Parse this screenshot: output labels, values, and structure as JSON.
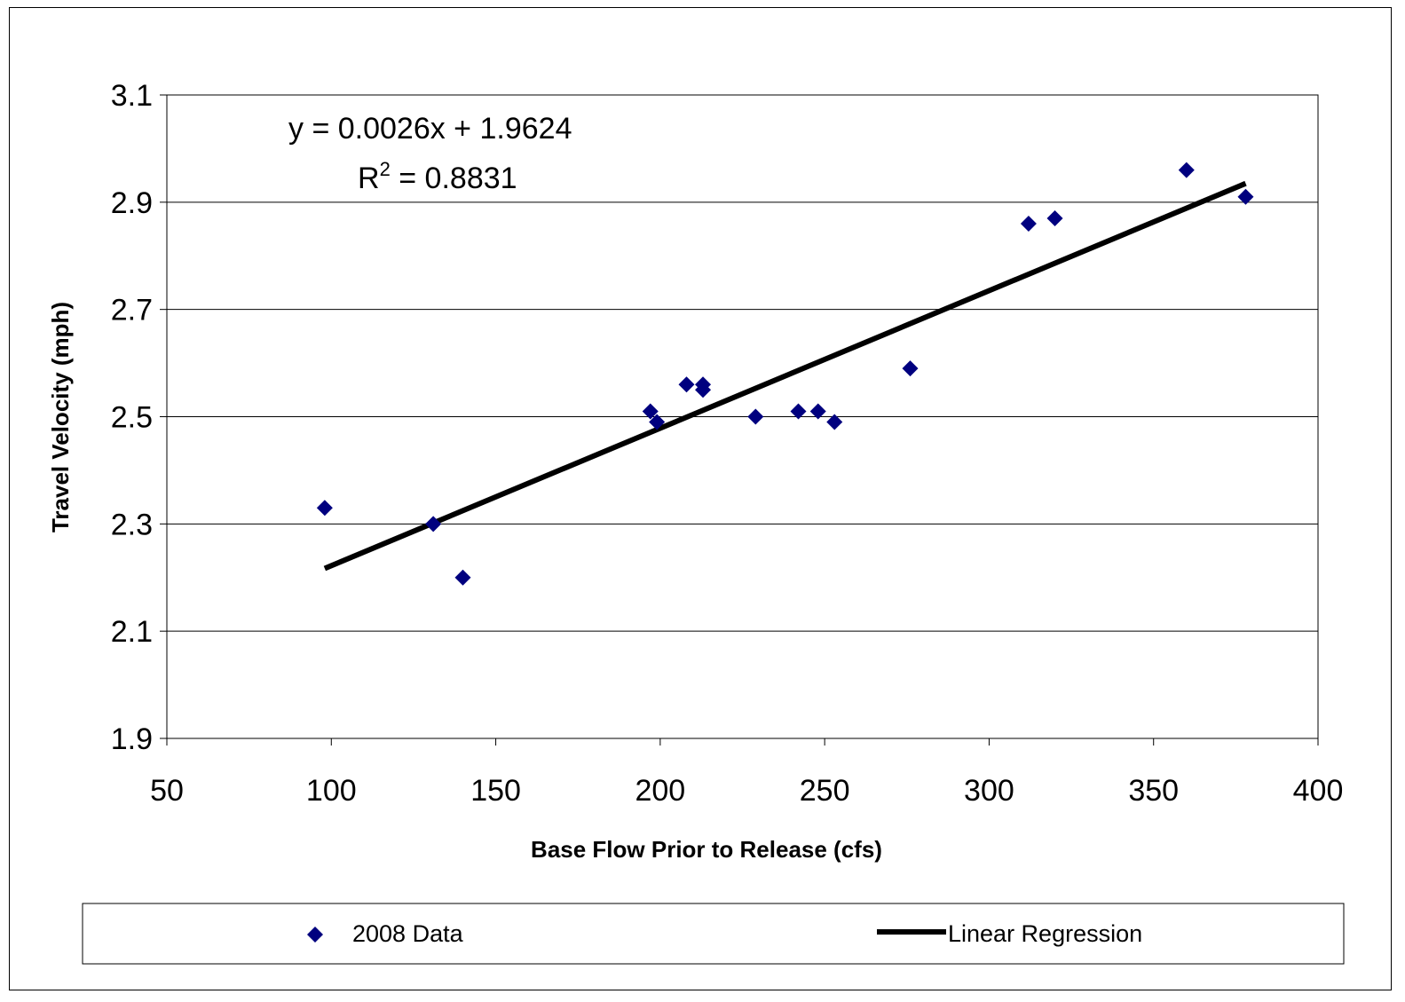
{
  "chart_data": {
    "type": "scatter",
    "xlabel": "Base Flow Prior to Release (cfs)",
    "ylabel": "Travel Velocity (mph)",
    "xlim": [
      50,
      400
    ],
    "ylim": [
      1.9,
      3.1
    ],
    "x_ticks": [
      "50",
      "100",
      "150",
      "200",
      "250",
      "300",
      "350",
      "400"
    ],
    "y_ticks": [
      "3.1",
      "2.9",
      "2.7",
      "2.5",
      "2.3",
      "2.1",
      "1.9"
    ],
    "grid": "horizontal",
    "legend_position": "bottom",
    "annotation": {
      "equation": "y = 0.0026x + 1.9624",
      "r2_prefix": "R",
      "r2_sup": "2",
      "r2_value": " = 0.8831"
    },
    "series": [
      {
        "name": "2008 Data",
        "marker": "diamond",
        "color": "#00007F",
        "points": [
          {
            "x": 98,
            "y": 2.33
          },
          {
            "x": 131,
            "y": 2.3
          },
          {
            "x": 140,
            "y": 2.2
          },
          {
            "x": 197,
            "y": 2.51
          },
          {
            "x": 199,
            "y": 2.49
          },
          {
            "x": 208,
            "y": 2.56
          },
          {
            "x": 213,
            "y": 2.56
          },
          {
            "x": 213,
            "y": 2.55
          },
          {
            "x": 229,
            "y": 2.5
          },
          {
            "x": 242,
            "y": 2.51
          },
          {
            "x": 248,
            "y": 2.51
          },
          {
            "x": 253,
            "y": 2.49
          },
          {
            "x": 276,
            "y": 2.59
          },
          {
            "x": 312,
            "y": 2.86
          },
          {
            "x": 320,
            "y": 2.87
          },
          {
            "x": 360,
            "y": 2.96
          },
          {
            "x": 378,
            "y": 2.91
          }
        ]
      },
      {
        "name": "Linear Regression",
        "type": "line",
        "color": "#000000",
        "points": [
          {
            "x": 98,
            "y": 2.217
          },
          {
            "x": 378,
            "y": 2.935
          }
        ]
      }
    ]
  }
}
